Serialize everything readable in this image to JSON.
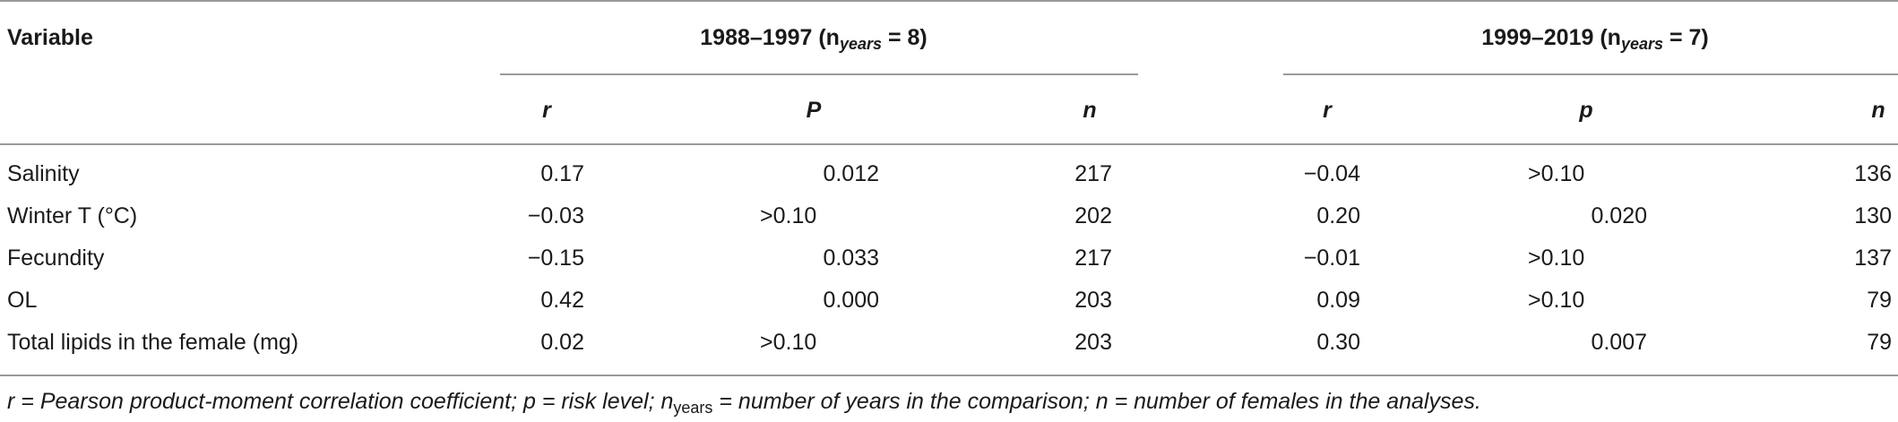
{
  "header": {
    "variable": "Variable",
    "group1": {
      "main": "1988–1997 (n",
      "sub": "years",
      "tail": " = 8)"
    },
    "group2": {
      "main": "1999–2019 (n",
      "sub": "years",
      "tail": " = 7)"
    },
    "cols1": {
      "r": "r",
      "p": "P",
      "n": "n"
    },
    "cols2": {
      "r": "r",
      "p": "p",
      "n": "n"
    }
  },
  "rows": [
    {
      "variable": "Salinity",
      "r1": "0.17",
      "p1": "0.012",
      "n1": "217",
      "r2": "−0.04",
      "p2": ">0.10",
      "n2": "136"
    },
    {
      "variable": "Winter T (°C)",
      "r1": "−0.03",
      "p1": ">0.10",
      "n1": "202",
      "r2": "0.20",
      "p2": "0.020",
      "n2": "130"
    },
    {
      "variable": "Fecundity",
      "r1": "−0.15",
      "p1": "0.033",
      "n1": "217",
      "r2": "−0.01",
      "p2": ">0.10",
      "n2": "137"
    },
    {
      "variable": "OL",
      "r1": "0.42",
      "p1": "0.000",
      "n1": "203",
      "r2": "0.09",
      "p2": ">0.10",
      "n2": "79"
    },
    {
      "variable": "Total lipids in the female (mg)",
      "r1": "0.02",
      "p1": ">0.10",
      "n1": "203",
      "r2": "0.30",
      "p2": "0.007",
      "n2": "79"
    }
  ],
  "footnote": {
    "part1": "r = Pearson product-moment correlation coefficient; p = risk level; n",
    "sub": "years",
    "part2": " = number of years in the comparison; n = number of females in the analyses."
  }
}
